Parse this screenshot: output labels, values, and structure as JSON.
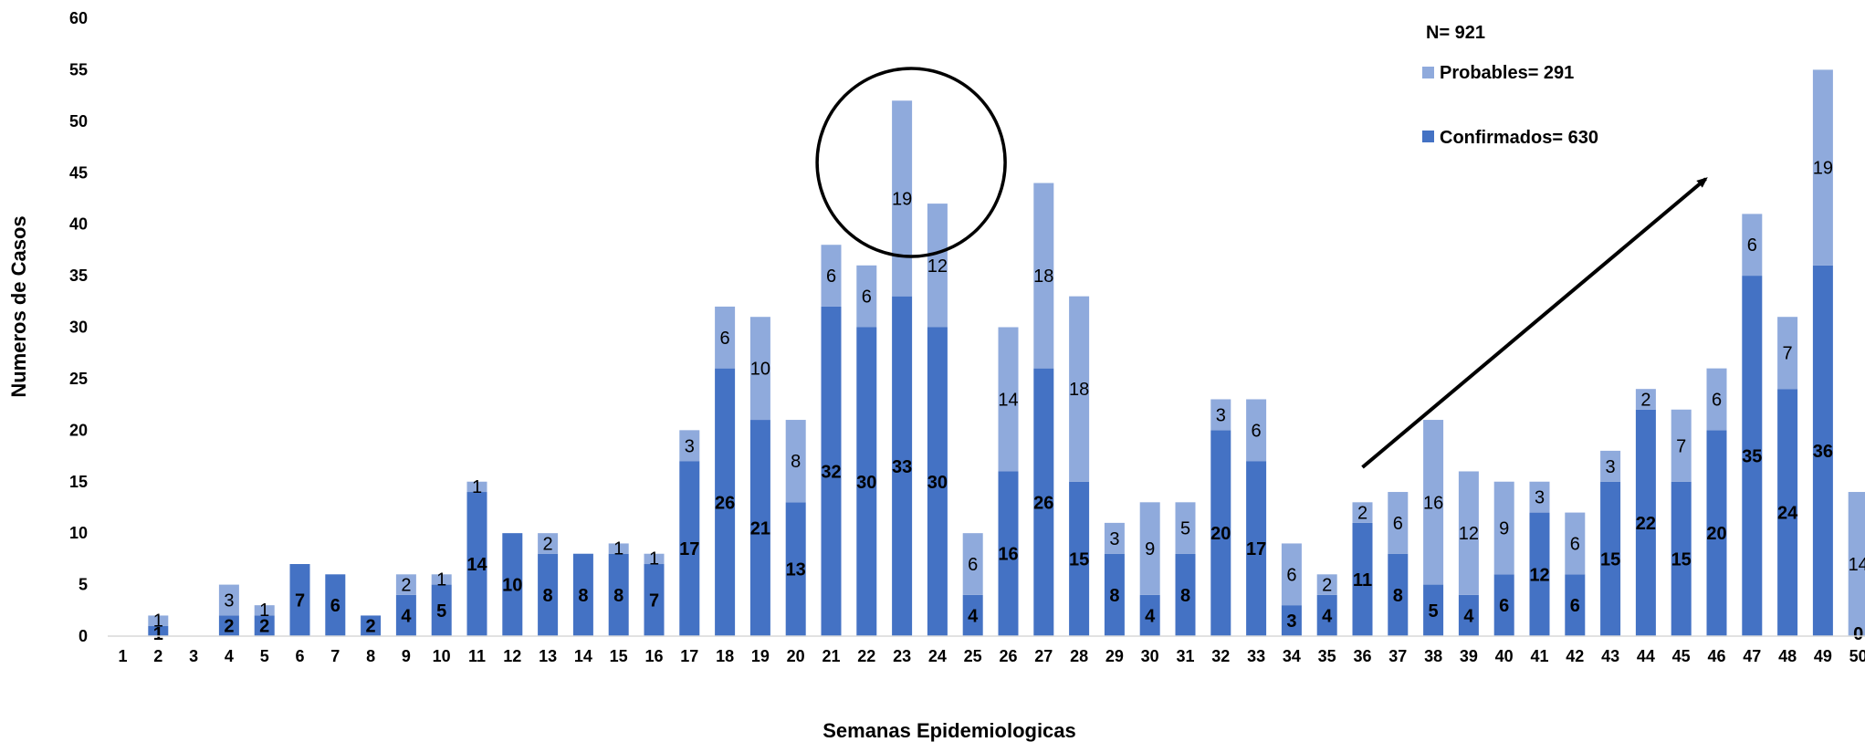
{
  "chart_data": {
    "type": "bar",
    "stacked": true,
    "xlabel": "Semanas Epidemiologicas",
    "ylabel": "Numeros de Casos",
    "ylim": [
      0,
      60
    ],
    "yticks": [
      0,
      5,
      10,
      15,
      20,
      25,
      30,
      35,
      40,
      45,
      50,
      55,
      60
    ],
    "grid": false,
    "legend_position": "top-right",
    "categories": [
      "1",
      "2",
      "3",
      "4",
      "5",
      "6",
      "7",
      "8",
      "9",
      "10",
      "11",
      "12",
      "13",
      "14",
      "15",
      "16",
      "17",
      "18",
      "19",
      "20",
      "21",
      "22",
      "23",
      "24",
      "25",
      "26",
      "27",
      "28",
      "29",
      "30",
      "31",
      "32",
      "33",
      "34",
      "35",
      "36",
      "37",
      "38",
      "39",
      "40",
      "41",
      "42",
      "43",
      "44",
      "45",
      "46",
      "47",
      "48",
      "49",
      "50"
    ],
    "series": [
      {
        "name": "Confirmados",
        "color": "#4472C4",
        "values": [
          0,
          1,
          0,
          2,
          2,
          7,
          6,
          2,
          4,
          5,
          14,
          10,
          8,
          8,
          8,
          7,
          17,
          26,
          21,
          13,
          32,
          30,
          33,
          30,
          4,
          16,
          26,
          15,
          8,
          4,
          8,
          20,
          17,
          3,
          4,
          11,
          8,
          5,
          4,
          6,
          12,
          6,
          15,
          22,
          15,
          20,
          35,
          24,
          36,
          0
        ]
      },
      {
        "name": "Probables",
        "color": "#8FAADC",
        "values": [
          0,
          1,
          0,
          3,
          1,
          0,
          0,
          0,
          2,
          1,
          1,
          0,
          2,
          0,
          1,
          1,
          3,
          6,
          10,
          8,
          6,
          6,
          19,
          12,
          6,
          14,
          18,
          18,
          3,
          9,
          5,
          3,
          6,
          6,
          2,
          2,
          6,
          16,
          12,
          9,
          3,
          6,
          3,
          2,
          7,
          6,
          6,
          7,
          19,
          14
        ]
      }
    ],
    "legend": {
      "total_label": "N= 921",
      "entries": [
        {
          "label": "Probables= 291",
          "color": "#8FAADC"
        },
        {
          "label": "Confirmados= 630",
          "color": "#4472C4"
        }
      ]
    },
    "annotations": [
      {
        "type": "circle",
        "around_category": "23"
      },
      {
        "type": "arrow",
        "from_category": "36",
        "to_category": "46",
        "direction": "upward"
      }
    ]
  }
}
